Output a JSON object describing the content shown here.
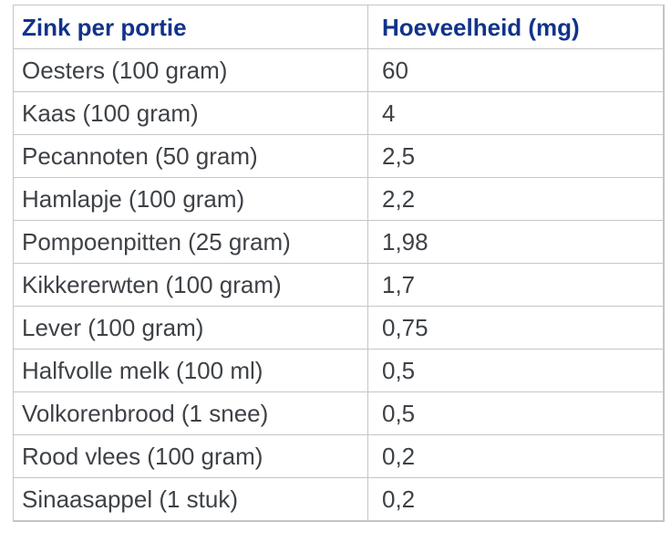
{
  "colors": {
    "header_text": "#12338a",
    "body_text": "#3e4247",
    "border": "#c6c6c6",
    "background": "#ffffff"
  },
  "table": {
    "columns": [
      "Zink per portie",
      "Hoeveelheid (mg)"
    ],
    "rows": [
      {
        "food": "Oesters (100 gram)",
        "amount": "60"
      },
      {
        "food": "Kaas (100 gram)",
        "amount": "4"
      },
      {
        "food": "Pecannoten (50 gram)",
        "amount": "2,5"
      },
      {
        "food": "Hamlapje (100 gram)",
        "amount": "2,2"
      },
      {
        "food": "Pompoenpitten (25 gram)",
        "amount": "1,98"
      },
      {
        "food": "Kikkererwten (100 gram)",
        "amount": "1,7"
      },
      {
        "food": "Lever (100 gram)",
        "amount": "0,75"
      },
      {
        "food": "Halfvolle melk (100 ml)",
        "amount": "0,5"
      },
      {
        "food": "Volkorenbrood (1 snee)",
        "amount": "0,5"
      },
      {
        "food": "Rood vlees (100 gram)",
        "amount": "0,2"
      },
      {
        "food": "Sinaasappel (1 stuk)",
        "amount": "0,2"
      }
    ]
  },
  "chart_data": {
    "type": "table",
    "title": "Zink per portie",
    "columns": [
      "Zink per portie",
      "Hoeveelheid (mg)"
    ],
    "categories": [
      "Oesters (100 gram)",
      "Kaas (100 gram)",
      "Pecannoten (50 gram)",
      "Hamlapje (100 gram)",
      "Pompoenpitten (25 gram)",
      "Kikkererwten (100 gram)",
      "Lever (100 gram)",
      "Halfvolle melk (100 ml)",
      "Volkorenbrood (1 snee)",
      "Rood vlees (100 gram)",
      "Sinaasappel (1 stuk)"
    ],
    "values": [
      60,
      4,
      2.5,
      2.2,
      1.98,
      1.7,
      0.75,
      0.5,
      0.5,
      0.2,
      0.2
    ],
    "ylabel": "Hoeveelheid (mg)"
  }
}
